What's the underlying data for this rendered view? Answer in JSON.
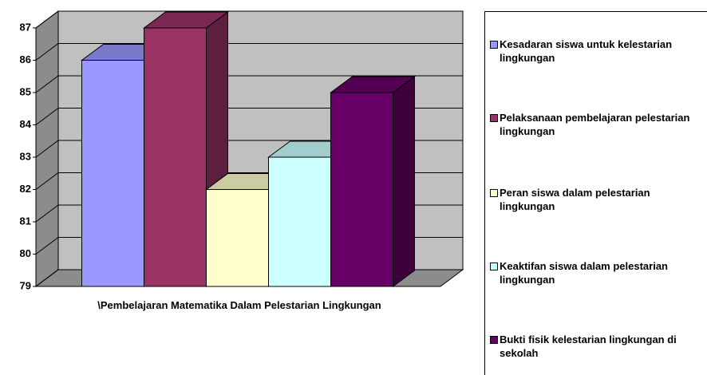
{
  "chart_data": {
    "type": "bar3d",
    "categories": [
      "\\Pembelajaran Matematika Dalam Pelestarian Lingkungan"
    ],
    "series": [
      {
        "name": "Kesadaran siswa untuk kelestarian lingkungan",
        "color": "#9999ff",
        "values": [
          86
        ]
      },
      {
        "name": "Pelaksanaan pembelajaran pelestarian lingkungan",
        "color": "#993366",
        "values": [
          87
        ]
      },
      {
        "name": "Peran siswa dalam pelestarian lingkungan",
        "color": "#ffffcc",
        "values": [
          82
        ]
      },
      {
        "name": "Keaktifan siswa dalam pelestarian lingkungan",
        "color": "#ccffff",
        "values": [
          83
        ]
      },
      {
        "name": "Bukti fisik kelestarian lingkungan di sekolah",
        "color": "#660066",
        "values": [
          85
        ]
      }
    ],
    "ylim": [
      79,
      87
    ],
    "yticks": [
      79,
      80,
      81,
      82,
      83,
      84,
      85,
      86,
      87
    ],
    "grid": true,
    "legend": "right"
  }
}
